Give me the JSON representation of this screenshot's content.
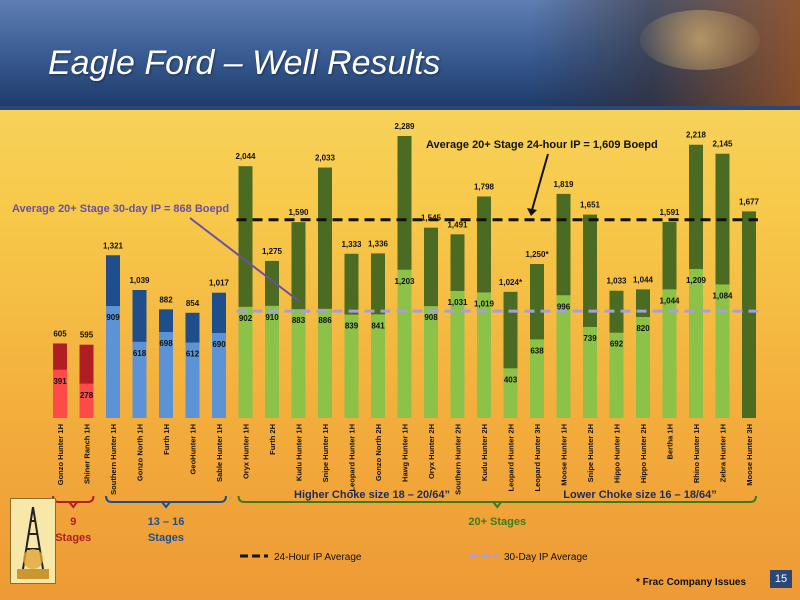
{
  "slide": {
    "title": "Eagle Ford – Well Results",
    "page_number": "15",
    "footnote": "* Frac Company Issues"
  },
  "chart_data": {
    "type": "bar",
    "title": "",
    "xlabel": "",
    "ylabel": "",
    "ylim": [
      0,
      2400
    ],
    "categories": [
      "Gonzo Hunter 1H",
      "Shiner Ranch 1H",
      "Southern Hunter 1H",
      "Gonzo North 1H",
      "Furth 1H",
      "GeoHunter 1H",
      "Sable Hunter 1H",
      "Oryx Hunter 1H",
      "Furth 2H",
      "Kudu Hunter 1H",
      "Snipe Hunter 1H",
      "Leopard Hunter 1H",
      "Gonzo North 2H",
      "Hawg Hunter 1H",
      "Oryx Hunter 2H",
      "Southern Hunter 2H",
      "Kudu Hunter 2H",
      "Leopard Hunter 2H",
      "Leopard Hunter 3H",
      "Moose Hunter 1H",
      "Snipe Hunter 2H",
      "Hippo Hunter 1H",
      "Hippo Hunter 2H",
      "Bertha 1H",
      "Rhino Hunter 1H",
      "Zebra Hunter 1H",
      "Moose Hunter 3H"
    ],
    "series": [
      {
        "key": "ip24",
        "values": [
          605,
          595,
          1321,
          1039,
          882,
          854,
          1017,
          2044,
          1275,
          1590,
          2033,
          1333,
          1336,
          2289,
          1545,
          1491,
          1798,
          1024,
          1250,
          1819,
          1651,
          1033,
          1044,
          1591,
          2218,
          2145,
          1677
        ]
      },
      {
        "key": "ip30",
        "values": [
          391,
          278,
          909,
          618,
          698,
          612,
          690,
          902,
          910,
          883,
          886,
          839,
          841,
          1203,
          908,
          1031,
          1019,
          403,
          638,
          996,
          739,
          692,
          820,
          1044,
          1209,
          1084,
          null
        ]
      }
    ],
    "value_labels_24h": [
      "605",
      "595",
      "1,321",
      "1,039",
      "882",
      "854",
      "1,017",
      "2,044",
      "1,275",
      "1,590",
      "2,033",
      "1,333",
      "1,336",
      "2,289",
      "1,545",
      "1,491",
      "1,798",
      "1,024*",
      "1,250*",
      "1,819",
      "1,651",
      "1,033",
      "1,044",
      "1,591",
      "2,218",
      "2,145",
      "1,677"
    ],
    "value_labels_30d": [
      "391",
      "278",
      "909",
      "618",
      "698",
      "612",
      "690",
      "902",
      "910",
      "883",
      "886",
      "839",
      "841",
      "1,203",
      "908",
      "1,031",
      "1,019",
      "403",
      "638",
      "996",
      "739",
      "692",
      "820",
      "1,044",
      "1,209",
      "1,084",
      ""
    ],
    "groups": [
      {
        "label_line1": "9",
        "label_line2": "Stages",
        "color": "#b01e23",
        "light_color": "#ff4a4a",
        "dark_color": "#b01e23",
        "start": 0,
        "end": 1
      },
      {
        "label_line1": "13 – 16",
        "label_line2": "Stages",
        "color": "#1f4e8c",
        "light_color": "#5b93d6",
        "dark_color": "#1f4e8c",
        "start": 2,
        "end": 6
      },
      {
        "label_line1": "20+ Stages",
        "label_line2": "",
        "color": "#3c7a1e",
        "light_color": "#8dc248",
        "dark_color": "#4c6b22",
        "start": 7,
        "end": 26
      }
    ],
    "averages": {
      "ip24_value": 1609,
      "ip30_value": 868,
      "ip24_annotation": "Average 20+ Stage 24-hour IP = 1,609 Boepd",
      "ip30_annotation": "Average 20+ Stage 30-day IP = 868 Boepd"
    },
    "choke_labels": {
      "higher": "Higher Choke size 18 – 20/64”",
      "lower": "Lower Choke size 16 – 18/64”"
    },
    "legend": [
      {
        "label": "24-Hour IP Average",
        "color": "#111111",
        "style": "dashed"
      },
      {
        "label": "30-Day IP Average",
        "color": "#a6a0d8",
        "style": "dashed"
      }
    ],
    "colors": {
      "ip24_line": "#111111",
      "ip30_line": "#a6a0d8",
      "ip30_annotation": "#6b4fa3",
      "choke_text": "#1f2a5a"
    }
  }
}
